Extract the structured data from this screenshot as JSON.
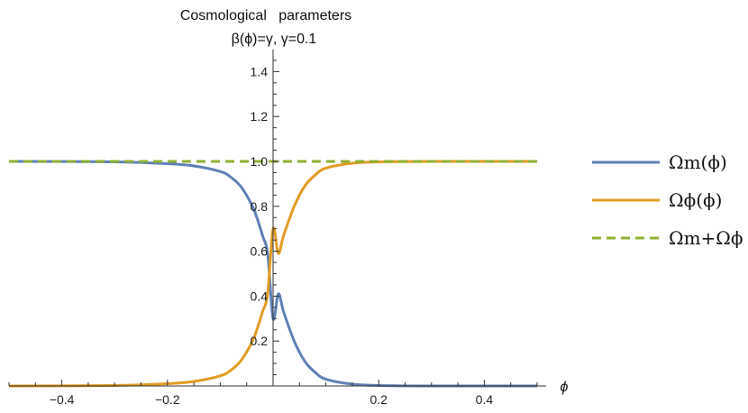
{
  "chart_data": {
    "type": "line",
    "title": "Cosmological   parameters",
    "subtitle": "β(ϕ)=γ, γ=0.1",
    "xlabel": "ϕ",
    "ylabel": "",
    "xlim": [
      -0.5,
      0.5
    ],
    "ylim": [
      0,
      1.5
    ],
    "x_ticks": [
      -0.4,
      -0.2,
      0.2,
      0.4
    ],
    "x_tick_labels": [
      "−0.4",
      "−0.2",
      "0.2",
      "0.4"
    ],
    "y_ticks": [
      0.2,
      0.4,
      0.6,
      0.8,
      1.0,
      1.2,
      1.4
    ],
    "y_tick_labels": [
      "0.2",
      "0.4",
      "0.6",
      "0.8",
      "1.0",
      "1.2",
      "1.4"
    ],
    "legend_position": "right",
    "grid": false,
    "x": [
      -0.5,
      -0.3,
      -0.2,
      -0.15,
      -0.1,
      -0.08,
      -0.06,
      -0.04,
      -0.03,
      -0.02,
      -0.01,
      0.0,
      0.01,
      0.02,
      0.04,
      0.06,
      0.08,
      0.1,
      0.15,
      0.2,
      0.3,
      0.5
    ],
    "series": [
      {
        "name": "Ωm(ϕ)",
        "color": "#5e81b5",
        "dash": "solid",
        "values": [
          1.0,
          0.998,
          0.99,
          0.98,
          0.955,
          0.93,
          0.885,
          0.805,
          0.745,
          0.67,
          0.585,
          0.3,
          0.41,
          0.33,
          0.2,
          0.11,
          0.06,
          0.03,
          0.008,
          0.002,
          0.0,
          0.0
        ]
      },
      {
        "name": "Ωϕ(ϕ)",
        "color": "#e19c24",
        "dash": "solid",
        "values": [
          0.0,
          0.002,
          0.01,
          0.02,
          0.045,
          0.07,
          0.115,
          0.195,
          0.255,
          0.33,
          0.415,
          0.7,
          0.59,
          0.67,
          0.8,
          0.89,
          0.94,
          0.97,
          0.992,
          0.998,
          1.0,
          1.0
        ]
      },
      {
        "name": "Ωm+Ωϕ",
        "color": "#8fb032",
        "dash": "dashed",
        "values": [
          1.0,
          1.0,
          1.0,
          1.0,
          1.0,
          1.0,
          1.0,
          1.0,
          1.0,
          1.0,
          1.0,
          1.0,
          1.0,
          1.0,
          1.0,
          1.0,
          1.0,
          1.0,
          1.0,
          1.0,
          1.0,
          1.0
        ]
      }
    ]
  }
}
